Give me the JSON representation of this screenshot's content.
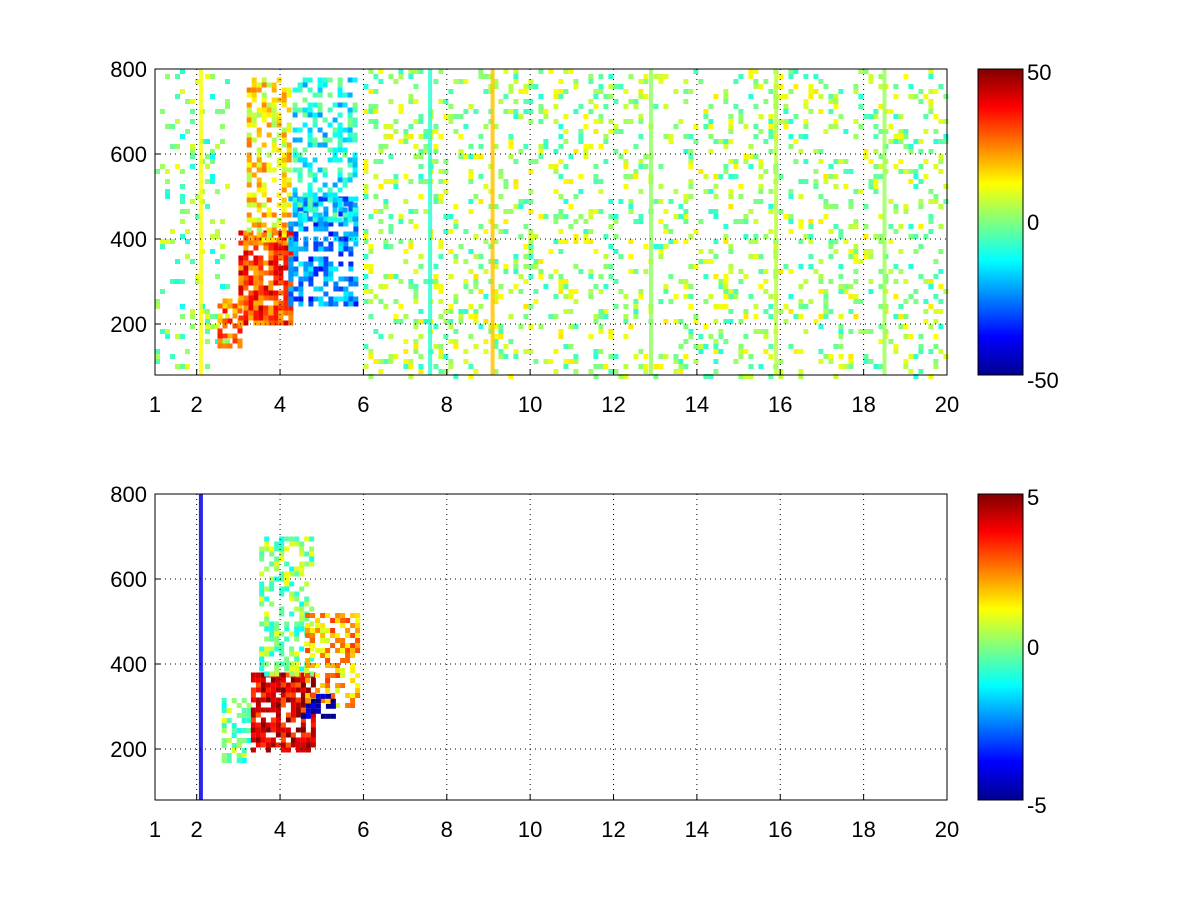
{
  "chart_data": [
    {
      "type": "heatmap",
      "title": "",
      "xlabel": "",
      "ylabel": "",
      "xlim": [
        1,
        20
      ],
      "ylim": [
        80,
        800
      ],
      "x_ticks": [
        "1",
        "2",
        "4",
        "6",
        "8",
        "10",
        "12",
        "14",
        "16",
        "18",
        "20"
      ],
      "y_ticks": [
        "200",
        "400",
        "600",
        "800"
      ],
      "grid": true,
      "colormap": "jet",
      "colorbar": {
        "clim": [
          -50,
          50
        ],
        "ticks": [
          "50",
          "0",
          "-50"
        ]
      },
      "pattern": [
        {
          "x_range": [
            1.0,
            2.7
          ],
          "y_range": [
            100,
            800
          ],
          "value": 0,
          "density": 0.15
        },
        {
          "x_range": [
            2.5,
            3.0
          ],
          "y_range": [
            150,
            260
          ],
          "value": 25,
          "density": 0.6
        },
        {
          "x_range": [
            3.0,
            4.3
          ],
          "y_range": [
            200,
            420
          ],
          "value": 32,
          "density": 0.85
        },
        {
          "x_range": [
            3.2,
            4.2
          ],
          "y_range": [
            400,
            780
          ],
          "value": 15,
          "density": 0.55
        },
        {
          "x_range": [
            4.2,
            5.8
          ],
          "y_range": [
            250,
            500
          ],
          "value": -25,
          "density": 0.6
        },
        {
          "x_range": [
            4.3,
            5.8
          ],
          "y_range": [
            450,
            780
          ],
          "value": -12,
          "density": 0.5
        },
        {
          "x_range": [
            6.0,
            20.0
          ],
          "y_range": [
            80,
            800
          ],
          "value": 3,
          "density": 0.2
        }
      ],
      "columns": [
        {
          "x": 2.1,
          "value": 12
        },
        {
          "x": 7.6,
          "value": -8
        },
        {
          "x": 9.1,
          "value": 18
        },
        {
          "x": 12.9,
          "value": 2
        },
        {
          "x": 15.9,
          "value": 6
        },
        {
          "x": 18.5,
          "value": 3
        }
      ]
    },
    {
      "type": "heatmap",
      "title": "",
      "xlabel": "",
      "ylabel": "",
      "xlim": [
        1,
        20
      ],
      "ylim": [
        80,
        800
      ],
      "x_ticks": [
        "1",
        "2",
        "4",
        "6",
        "8",
        "10",
        "12",
        "14",
        "16",
        "18",
        "20"
      ],
      "y_ticks": [
        "200",
        "400",
        "600",
        "800"
      ],
      "grid": true,
      "colormap": "jet",
      "colorbar": {
        "clim": [
          -5,
          5
        ],
        "ticks": [
          "5",
          "0",
          "-5"
        ]
      },
      "pattern": [
        {
          "x_range": [
            2.6,
            3.3
          ],
          "y_range": [
            170,
            320
          ],
          "value": 0,
          "density": 0.5
        },
        {
          "x_range": [
            3.3,
            4.8
          ],
          "y_range": [
            200,
            380
          ],
          "value": 4,
          "density": 0.8
        },
        {
          "x_range": [
            3.5,
            4.8
          ],
          "y_range": [
            380,
            700
          ],
          "value": 0,
          "density": 0.55
        },
        {
          "x_range": [
            4.6,
            5.8
          ],
          "y_range": [
            300,
            520
          ],
          "value": 2,
          "density": 0.55
        },
        {
          "x_range": [
            4.5,
            5.3
          ],
          "y_range": [
            280,
            330
          ],
          "value": -5,
          "density": 0.6
        }
      ],
      "columns": [
        {
          "x": 2.1,
          "value": -4
        }
      ]
    }
  ]
}
